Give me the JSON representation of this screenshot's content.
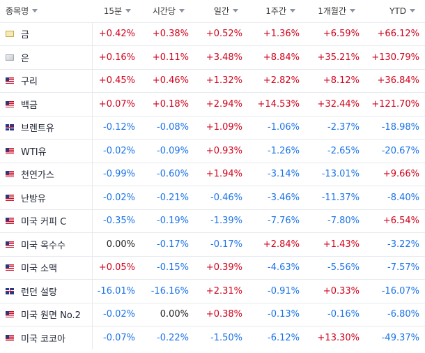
{
  "columns": {
    "name": "종목명",
    "m15": "15분",
    "hour": "시간당",
    "day": "일간",
    "week": "1주간",
    "month": "1개월간",
    "ytd": "YTD"
  },
  "rows": [
    {
      "name": "금",
      "flag": "gold",
      "m15": "+0.42%",
      "hour": "+0.38%",
      "day": "+0.52%",
      "week": "+1.36%",
      "month": "+6.59%",
      "ytd": "+66.12%"
    },
    {
      "name": "은",
      "flag": "silver",
      "m15": "+0.16%",
      "hour": "+0.11%",
      "day": "+3.48%",
      "week": "+8.84%",
      "month": "+35.21%",
      "ytd": "+130.79%"
    },
    {
      "name": "구리",
      "flag": "us",
      "m15": "+0.45%",
      "hour": "+0.46%",
      "day": "+1.32%",
      "week": "+2.82%",
      "month": "+8.12%",
      "ytd": "+36.84%"
    },
    {
      "name": "백금",
      "flag": "us",
      "m15": "+0.07%",
      "hour": "+0.18%",
      "day": "+2.94%",
      "week": "+14.53%",
      "month": "+32.44%",
      "ytd": "+121.70%"
    },
    {
      "name": "브렌트유",
      "flag": "uk",
      "m15": "-0.12%",
      "hour": "-0.08%",
      "day": "+1.09%",
      "week": "-1.06%",
      "month": "-2.37%",
      "ytd": "-18.98%"
    },
    {
      "name": "WTI유",
      "flag": "us",
      "m15": "-0.02%",
      "hour": "-0.09%",
      "day": "+0.93%",
      "week": "-1.26%",
      "month": "-2.65%",
      "ytd": "-20.67%"
    },
    {
      "name": "천연가스",
      "flag": "us",
      "m15": "-0.99%",
      "hour": "-0.60%",
      "day": "+1.94%",
      "week": "-3.14%",
      "month": "-13.01%",
      "ytd": "+9.66%"
    },
    {
      "name": "난방유",
      "flag": "us",
      "m15": "-0.02%",
      "hour": "-0.21%",
      "day": "-0.46%",
      "week": "-3.46%",
      "month": "-11.37%",
      "ytd": "-8.40%"
    },
    {
      "name": "미국 커피 C",
      "flag": "us",
      "m15": "-0.35%",
      "hour": "-0.19%",
      "day": "-1.39%",
      "week": "-7.76%",
      "month": "-7.80%",
      "ytd": "+6.54%"
    },
    {
      "name": "미국 옥수수",
      "flag": "us",
      "m15": "0.00%",
      "hour": "-0.17%",
      "day": "-0.17%",
      "week": "+2.84%",
      "month": "+1.43%",
      "ytd": "-3.22%"
    },
    {
      "name": "미국 소맥",
      "flag": "us",
      "m15": "+0.05%",
      "hour": "-0.15%",
      "day": "+0.39%",
      "week": "-4.63%",
      "month": "-5.56%",
      "ytd": "-7.57%"
    },
    {
      "name": "런던 설탕",
      "flag": "uk",
      "m15": "-16.01%",
      "hour": "-16.16%",
      "day": "+2.31%",
      "week": "-0.91%",
      "month": "+0.33%",
      "ytd": "-16.07%"
    },
    {
      "name": "미국 원면 No.2",
      "flag": "us",
      "m15": "-0.02%",
      "hour": "0.00%",
      "day": "+0.38%",
      "week": "-0.13%",
      "month": "-0.16%",
      "ytd": "-6.80%"
    },
    {
      "name": "미국 코코아",
      "flag": "us",
      "m15": "-0.07%",
      "hour": "-0.22%",
      "day": "-1.50%",
      "week": "-6.12%",
      "month": "+13.30%",
      "ytd": "-49.37%"
    }
  ],
  "colors": {
    "positive": "#d0021b",
    "negative": "#1a73e8",
    "neutral": "#222222"
  }
}
